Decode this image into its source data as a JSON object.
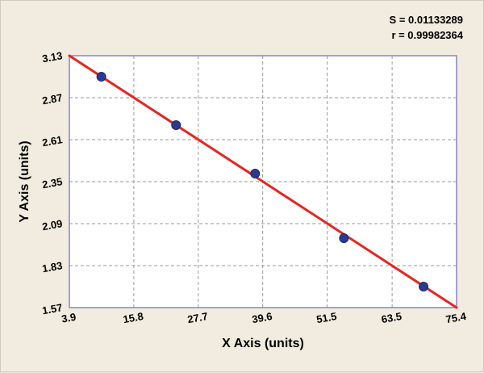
{
  "chart_data": {
    "type": "scatter",
    "title": "",
    "xlabel": "X Axis (units)",
    "ylabel": "Y Axis (units)",
    "xlim": [
      3.9,
      75.4
    ],
    "ylim": [
      1.57,
      3.13
    ],
    "x_ticks": [
      3.9,
      15.8,
      27.7,
      39.6,
      51.5,
      63.5,
      75.4
    ],
    "y_ticks": [
      1.57,
      1.83,
      2.09,
      2.35,
      2.61,
      2.87,
      3.13
    ],
    "points": [
      {
        "x": 9.8,
        "y": 3.0
      },
      {
        "x": 23.6,
        "y": 2.7
      },
      {
        "x": 38.2,
        "y": 2.4
      },
      {
        "x": 54.6,
        "y": 2.0
      },
      {
        "x": 69.3,
        "y": 1.7
      }
    ],
    "fit_line": {
      "x1": 3.9,
      "y1": 3.13,
      "x2": 75.4,
      "y2": 1.57
    },
    "annotations": [
      "S = 0.01133289",
      "r = 0.99982364"
    ],
    "grid": "dashed",
    "legend": "none",
    "colors": {
      "line": "#e8251f",
      "point": "#2b3990",
      "point_edge": "#1b2a6b",
      "background": "#f1ecdf",
      "plot_bg": "#ffffff",
      "grid": "#9a9a9a",
      "border": "#8089c0",
      "text": "#000000"
    }
  }
}
